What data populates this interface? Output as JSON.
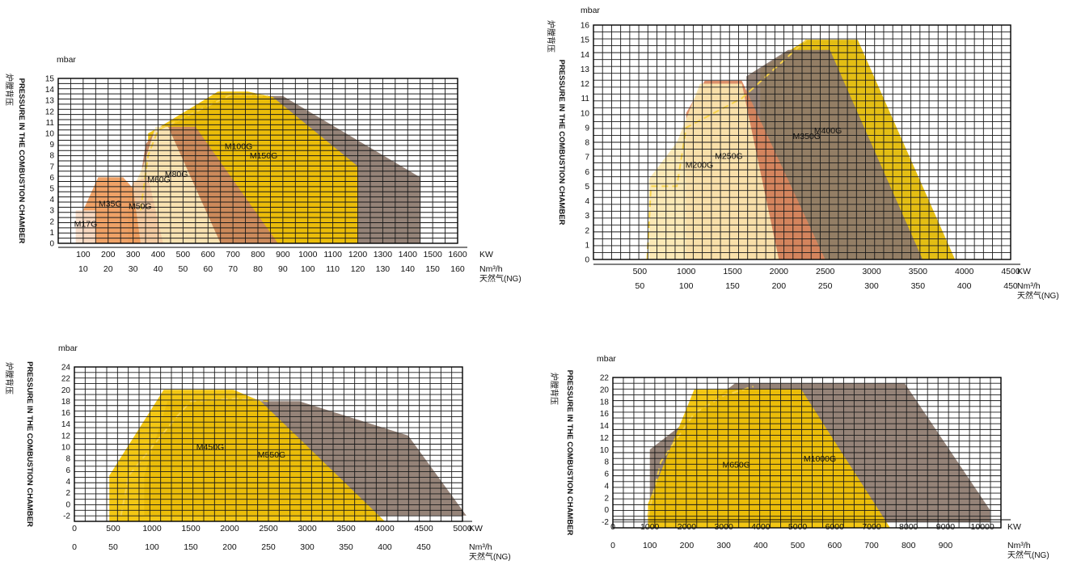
{
  "colors": {
    "grid": "#1a1a1a",
    "plot_bg": "#ffffff",
    "M17G": "#f8dcc8",
    "M35G": "#ee9a5a",
    "M50G": "#f2c8a0",
    "M60G": "#fde9b8",
    "M80G": "#c98563",
    "M100G": "#f2c200",
    "M150G": "#8c786c",
    "M200G": "#fbe7b0",
    "M250G": "#d9845c",
    "M350G": "#8c786c",
    "M400G": "#e2b800",
    "M450G": "#f2c200",
    "M550G": "#8c786c",
    "M650G": "#f2c200",
    "M1000G": "#8c786c",
    "dash": "#f7d24a"
  },
  "chart_data": [
    {
      "type": "area",
      "id": "chart1",
      "ylabel_top": "mbar",
      "vertical_label_cn": "炉膛背压",
      "vertical_label_en": "PRESSURE IN THE COMBUSTION CHAMBER",
      "x_unit": "KW",
      "flow_unit": "Nm³/h",
      "fuel_label": "天然气(NG)",
      "xlim": [
        0,
        1600
      ],
      "ylim": [
        0,
        15
      ],
      "yticks": [
        0,
        1,
        2,
        3,
        4,
        5,
        6,
        7,
        8,
        9,
        10,
        11,
        12,
        13,
        14,
        15
      ],
      "kw_ticks": [
        100,
        200,
        300,
        400,
        500,
        600,
        700,
        800,
        900,
        1000,
        1100,
        1200,
        1300,
        1400,
        1500,
        1600
      ],
      "flow_ticks": [
        10,
        20,
        30,
        40,
        50,
        60,
        70,
        80,
        90,
        100,
        110,
        120,
        130,
        140,
        150,
        160
      ],
      "series": [
        {
          "name": "M150G",
          "points": [
            [
              420,
              10.5
            ],
            [
              460,
              10.8
            ],
            [
              660,
              13.4
            ],
            [
              900,
              13.4
            ],
            [
              1450,
              6
            ],
            [
              1450,
              0
            ],
            [
              420,
              0
            ]
          ]
        },
        {
          "name": "M100G",
          "points": [
            [
              360,
              10
            ],
            [
              400,
              10.5
            ],
            [
              640,
              13.8
            ],
            [
              760,
              13.8
            ],
            [
              860,
              13.3
            ],
            [
              1200,
              7
            ],
            [
              1200,
              0
            ],
            [
              360,
              0
            ]
          ]
        },
        {
          "name": "M80G",
          "points": [
            [
              330,
              6
            ],
            [
              350,
              9
            ],
            [
              400,
              10.6
            ],
            [
              550,
              10.6
            ],
            [
              880,
              0
            ],
            [
              330,
              0
            ]
          ]
        },
        {
          "name": "M60G",
          "points": [
            [
              300,
              5
            ],
            [
              340,
              7
            ],
            [
              390,
              10.6
            ],
            [
              440,
              10.6
            ],
            [
              650,
              0
            ],
            [
              300,
              0
            ]
          ]
        },
        {
          "name": "M50G",
          "points": [
            [
              280,
              4
            ],
            [
              300,
              5.6
            ],
            [
              360,
              6
            ],
            [
              420,
              0
            ],
            [
              280,
              0
            ]
          ]
        },
        {
          "name": "M35G",
          "points": [
            [
              100,
              3
            ],
            [
              160,
              6
            ],
            [
              260,
              6
            ],
            [
              300,
              5
            ],
            [
              330,
              0
            ],
            [
              100,
              0
            ]
          ]
        },
        {
          "name": "M17G",
          "points": [
            [
              70,
              3
            ],
            [
              150,
              3
            ],
            [
              150,
              0
            ],
            [
              70,
              0
            ]
          ]
        }
      ]
    },
    {
      "type": "area",
      "id": "chart2",
      "ylabel_top": "mbar",
      "vertical_label_cn": "炉膛背压",
      "vertical_label_en": "PRESSURE IN THE COMBUSTION CHAMBER",
      "x_unit": "KW",
      "flow_unit": "Nm³/h",
      "fuel_label": "天然气(NG)",
      "xlim": [
        0,
        4500
      ],
      "ylim": [
        0,
        16
      ],
      "yticks": [
        0,
        1,
        2,
        3,
        4,
        5,
        6,
        7,
        8,
        9,
        10,
        11,
        12,
        13,
        14,
        15,
        16
      ],
      "kw_ticks": [
        500,
        1000,
        1500,
        2000,
        2500,
        3000,
        3500,
        4000,
        4500
      ],
      "flow_ticks": [
        50,
        100,
        150,
        200,
        250,
        300,
        350,
        400,
        450
      ],
      "series": [
        {
          "name": "M400G",
          "points": [
            [
              1800,
              13
            ],
            [
              2300,
              15
            ],
            [
              2850,
              15
            ],
            [
              3900,
              0
            ],
            [
              1800,
              0
            ]
          ]
        },
        {
          "name": "M350G",
          "points": [
            [
              1650,
              12.5
            ],
            [
              2100,
              14.3
            ],
            [
              2550,
              14.3
            ],
            [
              3550,
              0
            ],
            [
              1650,
              0
            ]
          ]
        },
        {
          "name": "M250G",
          "points": [
            [
              1000,
              10
            ],
            [
              1200,
              12.2
            ],
            [
              1600,
              12.2
            ],
            [
              2500,
              0
            ],
            [
              1000,
              0
            ]
          ]
        },
        {
          "name": "M200G",
          "points": [
            [
              600,
              5.5
            ],
            [
              900,
              8
            ],
            [
              1150,
              12
            ],
            [
              1600,
              12
            ],
            [
              2000,
              0
            ],
            [
              600,
              0
            ]
          ]
        }
      ]
    },
    {
      "type": "area",
      "id": "chart3",
      "ylabel_top": "mbar",
      "vertical_label_cn": "炉膛背压",
      "vertical_label_en": "PRESSURE IN THE COMBUSTION CHAMBER",
      "x_unit": "KW",
      "flow_unit": "Nm³/h",
      "fuel_label": "天然气(NG)",
      "xlim": [
        0,
        5000
      ],
      "ylim": [
        -3,
        24
      ],
      "yticks": [
        -2,
        0,
        2,
        4,
        6,
        8,
        10,
        12,
        14,
        16,
        18,
        20,
        22,
        24
      ],
      "kw_ticks": [
        0,
        500,
        1000,
        1500,
        2000,
        2500,
        3000,
        3500,
        4000,
        4500,
        5000
      ],
      "flow_ticks": [
        0,
        50,
        100,
        150,
        200,
        250,
        300,
        350,
        400,
        450
      ],
      "series": [
        {
          "name": "M550G",
          "points": [
            [
              900,
              5
            ],
            [
              1200,
              18
            ],
            [
              2900,
              18
            ],
            [
              4300,
              12
            ],
            [
              5050,
              -2
            ],
            [
              900,
              -2
            ]
          ]
        },
        {
          "name": "M450G",
          "points": [
            [
              450,
              5
            ],
            [
              1150,
              20
            ],
            [
              2050,
              20
            ],
            [
              2400,
              18
            ],
            [
              4000,
              -3
            ],
            [
              450,
              -3
            ]
          ]
        }
      ]
    },
    {
      "type": "area",
      "id": "chart4",
      "ylabel_top": "mbar",
      "vertical_label_cn": "炉膛背压",
      "vertical_label_en": "PRESSURE IN THE COMBUSTION CHAMBER",
      "x_unit": "KW",
      "flow_unit": "Nm³/h",
      "fuel_label": "天然气(NG)",
      "xlim": [
        0,
        10500
      ],
      "ylim": [
        -3,
        22
      ],
      "yticks": [
        -2,
        0,
        2,
        4,
        6,
        8,
        10,
        12,
        14,
        16,
        18,
        20,
        22
      ],
      "kw_ticks": [
        0,
        1000,
        2000,
        3000,
        4000,
        5000,
        6000,
        7000,
        8000,
        9000,
        10000
      ],
      "flow_ticks": [
        0,
        100,
        200,
        300,
        400,
        500,
        600,
        700,
        800,
        900
      ],
      "series": [
        {
          "name": "M1000G",
          "points": [
            [
              1000,
              10
            ],
            [
              3300,
              21
            ],
            [
              7900,
              21
            ],
            [
              10200,
              0
            ],
            [
              10200,
              -2
            ],
            [
              1000,
              -2
            ]
          ]
        },
        {
          "name": "M650G",
          "points": [
            [
              950,
              1
            ],
            [
              2200,
              20
            ],
            [
              5100,
              20
            ],
            [
              7500,
              -3
            ],
            [
              950,
              -3
            ]
          ]
        }
      ]
    }
  ]
}
